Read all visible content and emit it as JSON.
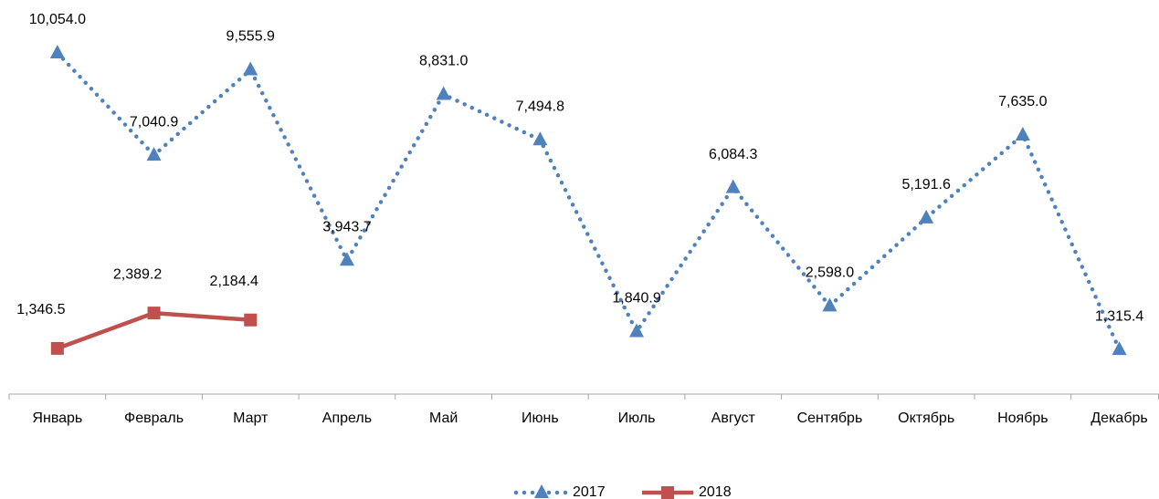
{
  "chart_data": {
    "type": "line",
    "categories": [
      "Январь",
      "Февраль",
      "Март",
      "Апрель",
      "Май",
      "Июнь",
      "Июль",
      "Август",
      "Сентябрь",
      "Октябрь",
      "Ноябрь",
      "Декабрь"
    ],
    "series": [
      {
        "name": "2017",
        "color": "#4f81bd",
        "marker": "triangle",
        "dash": "dotted",
        "values": [
          10054.0,
          7040.9,
          9555.9,
          3943.7,
          8831.0,
          7494.8,
          1840.9,
          6084.3,
          2598.0,
          5191.6,
          7635.0,
          1315.4
        ],
        "value_labels": [
          "10,054.0",
          "7,040.9",
          "9,555.9",
          "3,943.7",
          "8,831.0",
          "7,494.8",
          "1,840.9",
          "6,084.3",
          "2,598.0",
          "5,191.6",
          "7,635.0",
          "1,315.4"
        ]
      },
      {
        "name": "2018",
        "color": "#c0504d",
        "marker": "square",
        "dash": "solid",
        "values": [
          1346.5,
          2389.2,
          2184.4,
          null,
          null,
          null,
          null,
          null,
          null,
          null,
          null,
          null
        ],
        "value_labels": [
          "1,346.5",
          "2,389.2",
          "2,184.4",
          null,
          null,
          null,
          null,
          null,
          null,
          null,
          null,
          null
        ]
      }
    ],
    "legend": "bottom"
  }
}
